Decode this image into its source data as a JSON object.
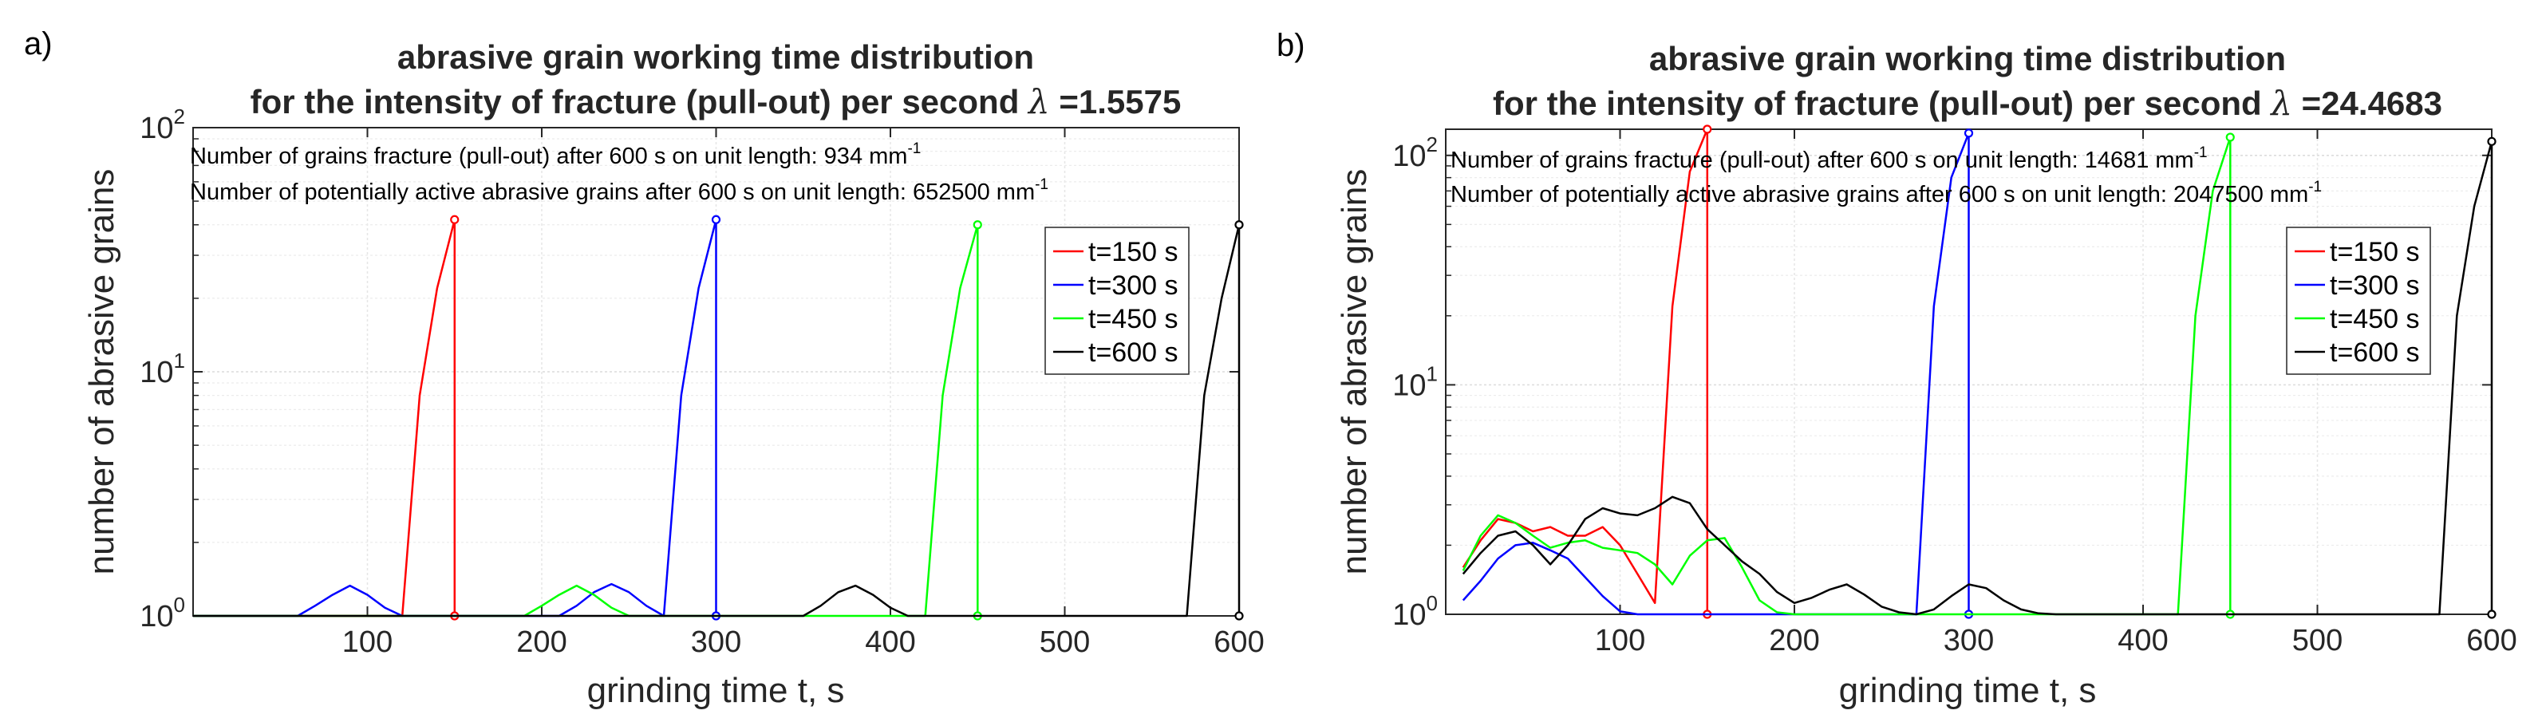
{
  "chart_data": [
    {
      "panel_label": "a)",
      "type": "line",
      "title_line1": "abrasive grain working time distribution",
      "title_line2_prefix": "for the intensity of fracture (pull-out) per second ",
      "title_lambda": "λ",
      "title_line2_value": " =1.5575",
      "xlabel": "grinding time t, s",
      "ylabel": "number of abrasive grains",
      "xlim": [
        0,
        600
      ],
      "ylim": [
        1,
        100
      ],
      "yscale": "log",
      "xticks": [
        100,
        200,
        300,
        400,
        500,
        600
      ],
      "yticks": [
        1,
        10,
        100
      ],
      "ytick_labels": [
        {
          "base": "10",
          "exp": "0"
        },
        {
          "base": "10",
          "exp": "1"
        },
        {
          "base": "10",
          "exp": "2"
        }
      ],
      "note1": "Number of grains fracture (pull-out) after 600 s on unit length: 934 mm",
      "note2": "Number of potentially active abrasive grains after 600 s on unit length: 652500 mm",
      "note_unit_exp": "-1",
      "legend_position": "right",
      "grid": true,
      "series": [
        {
          "name": "t=150 s",
          "color": "#ff0000",
          "x": [
            0,
            120,
            130,
            140,
            150,
            150
          ],
          "y": [
            1,
            1,
            8,
            22,
            42,
            1
          ]
        },
        {
          "name": "t=300 s",
          "color": "#0000ff",
          "x": [
            0,
            60,
            70,
            80,
            90,
            100,
            110,
            120,
            210,
            220,
            230,
            240,
            250,
            260,
            270,
            280,
            290,
            300,
            300
          ],
          "y": [
            1,
            1,
            1.1,
            1.22,
            1.33,
            1.22,
            1.08,
            1,
            1,
            1.1,
            1.25,
            1.35,
            1.25,
            1.1,
            1,
            8,
            22,
            42,
            1
          ]
        },
        {
          "name": "t=450 s",
          "color": "#00ff00",
          "x": [
            0,
            190,
            200,
            210,
            220,
            230,
            240,
            250,
            420,
            430,
            440,
            450,
            450
          ],
          "y": [
            1,
            1,
            1.1,
            1.22,
            1.33,
            1.22,
            1.08,
            1,
            1,
            8,
            22,
            40,
            1
          ]
        },
        {
          "name": "t=600 s",
          "color": "#000000",
          "x": [
            0,
            350,
            360,
            370,
            380,
            390,
            400,
            410,
            570,
            580,
            590,
            600,
            600
          ],
          "y": [
            1,
            1,
            1.1,
            1.25,
            1.33,
            1.22,
            1.08,
            1,
            1,
            8,
            20,
            40,
            1
          ]
        }
      ]
    },
    {
      "panel_label": "b)",
      "type": "line",
      "title_line1": "abrasive grain working time distribution",
      "title_line2_prefix": "for the intensity of fracture (pull-out) per second ",
      "title_lambda": "λ",
      "title_line2_value": " =24.4683",
      "xlabel": "grinding time t, s",
      "ylabel": "number of abrasive grains",
      "xlim": [
        0,
        600
      ],
      "ylim": [
        1,
        130
      ],
      "yscale": "log",
      "xticks": [
        100,
        200,
        300,
        400,
        500,
        600
      ],
      "yticks": [
        1,
        10,
        100
      ],
      "ytick_labels": [
        {
          "base": "10",
          "exp": "0"
        },
        {
          "base": "10",
          "exp": "1"
        },
        {
          "base": "10",
          "exp": "2"
        }
      ],
      "note1": "Number of grains fracture (pull-out) after 600 s on unit length: 14681 mm",
      "note2": "Number of potentially active abrasive grains after 600 s on unit length: 2047500 mm",
      "note_unit_exp": "-1",
      "legend_position": "right",
      "grid": true,
      "series": [
        {
          "name": "t=150 s",
          "color": "#ff0000",
          "x": [
            10,
            20,
            30,
            40,
            50,
            60,
            70,
            80,
            90,
            100,
            110,
            120,
            130,
            140,
            150,
            150
          ],
          "y": [
            1.6,
            2.1,
            2.6,
            2.5,
            2.3,
            2.4,
            2.2,
            2.2,
            2.4,
            2.0,
            1.5,
            1.12,
            22,
            85,
            130,
            1
          ]
        },
        {
          "name": "t=300 s",
          "color": "#0000ff",
          "x": [
            10,
            20,
            30,
            40,
            50,
            60,
            70,
            80,
            90,
            100,
            110,
            120,
            220,
            270,
            280,
            290,
            300,
            300
          ],
          "y": [
            1.15,
            1.4,
            1.75,
            2.0,
            2.05,
            1.9,
            1.75,
            1.45,
            1.2,
            1.03,
            1,
            1,
            1,
            1,
            22,
            80,
            125,
            1
          ]
        },
        {
          "name": "t=450 s",
          "color": "#00ff00",
          "x": [
            10,
            20,
            30,
            40,
            50,
            60,
            70,
            80,
            90,
            100,
            110,
            120,
            130,
            140,
            150,
            160,
            170,
            180,
            190,
            200,
            420,
            430,
            440,
            450,
            450
          ],
          "y": [
            1.55,
            2.2,
            2.7,
            2.5,
            2.2,
            1.95,
            2.05,
            2.1,
            1.95,
            1.9,
            1.85,
            1.65,
            1.35,
            1.8,
            2.1,
            2.15,
            1.6,
            1.15,
            1.02,
            1,
            1,
            20,
            70,
            120,
            1
          ]
        },
        {
          "name": "t=600 s",
          "color": "#000000",
          "x": [
            10,
            20,
            30,
            40,
            50,
            60,
            70,
            80,
            90,
            100,
            110,
            120,
            130,
            140,
            150,
            160,
            170,
            180,
            190,
            200,
            210,
            220,
            230,
            240,
            250,
            260,
            270,
            280,
            290,
            300,
            310,
            320,
            330,
            340,
            350,
            570,
            580,
            590,
            600,
            600
          ],
          "y": [
            1.5,
            1.85,
            2.2,
            2.3,
            2.0,
            1.65,
            2.0,
            2.6,
            2.9,
            2.75,
            2.7,
            2.9,
            3.25,
            3.05,
            2.35,
            2.0,
            1.7,
            1.5,
            1.25,
            1.12,
            1.18,
            1.28,
            1.35,
            1.22,
            1.08,
            1.02,
            1.0,
            1.05,
            1.2,
            1.35,
            1.3,
            1.15,
            1.05,
            1.01,
            1,
            1,
            20,
            60,
            115,
            1
          ]
        }
      ]
    }
  ]
}
